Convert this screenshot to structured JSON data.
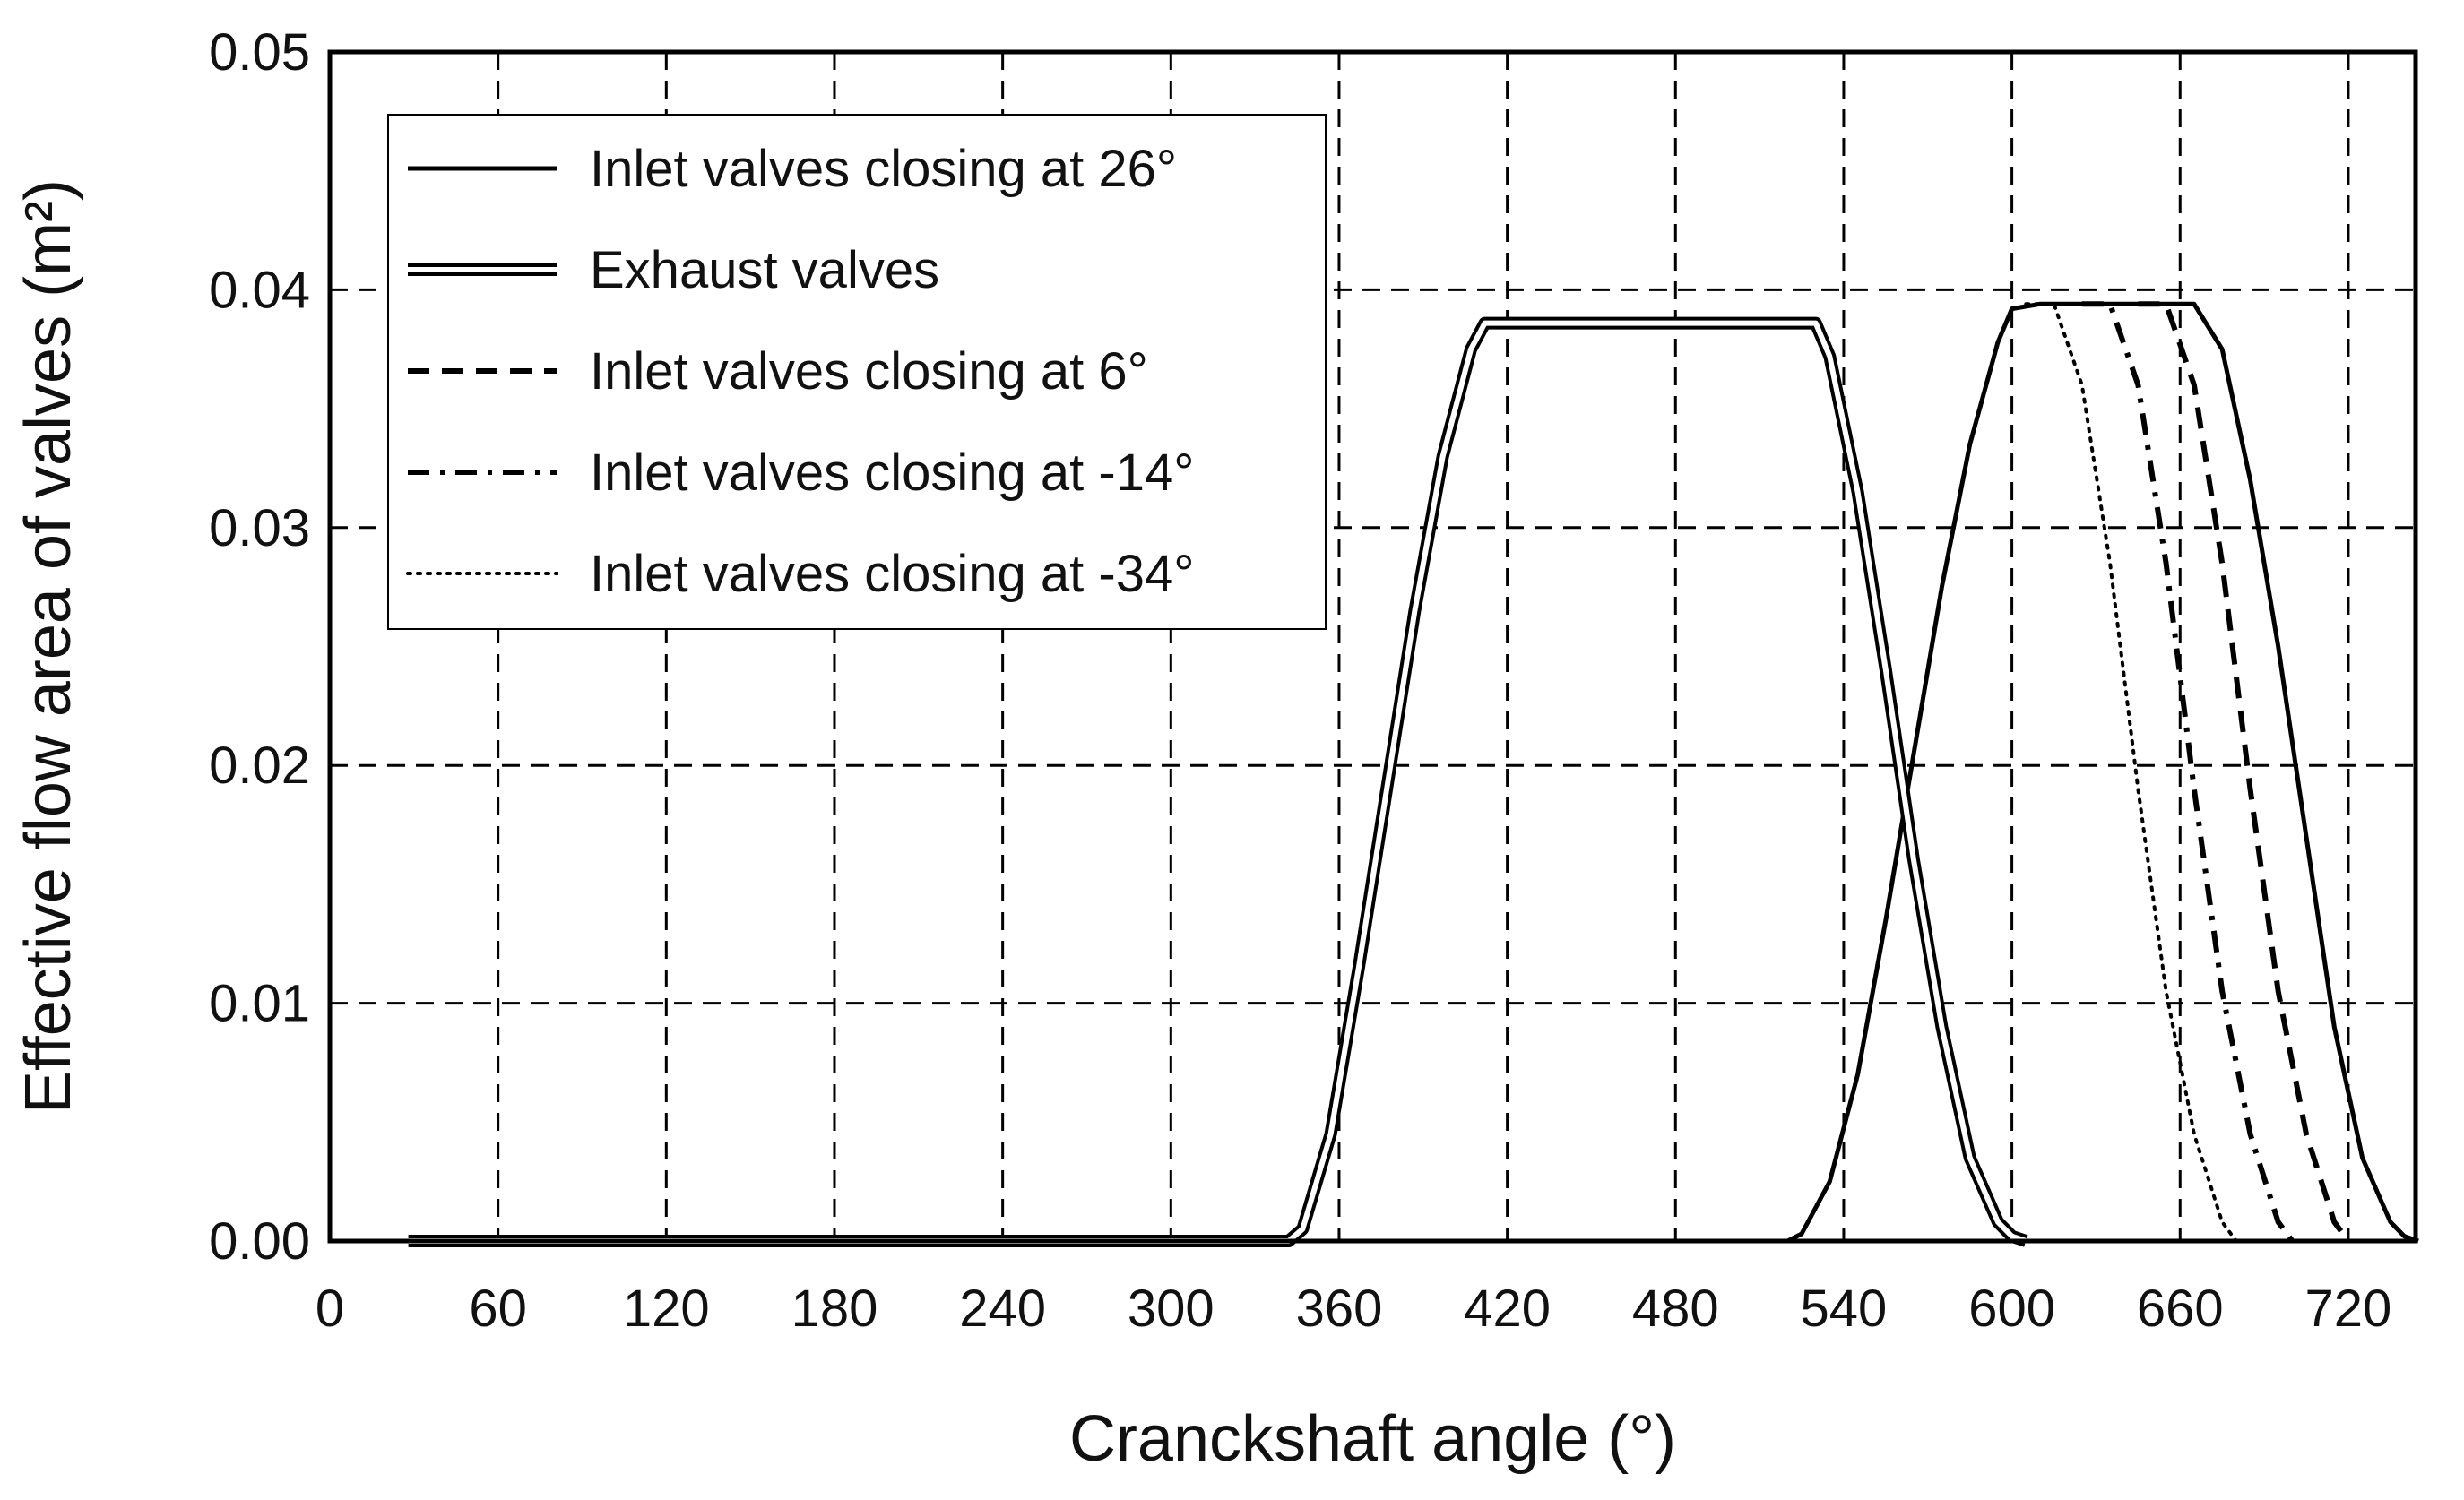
{
  "chart_data": {
    "type": "line",
    "xlabel": "Cranckshaft angle (°)",
    "ylabel": "Effective flow area of valves (m²)",
    "xlim": [
      0,
      744
    ],
    "ylim": [
      0,
      0.05
    ],
    "x_ticks": [
      0,
      60,
      120,
      180,
      240,
      300,
      360,
      420,
      480,
      540,
      600,
      660,
      720
    ],
    "y_ticks": [
      0.0,
      0.01,
      0.02,
      0.03,
      0.04,
      0.05
    ],
    "x_tick_labels": [
      "0",
      "60",
      "120",
      "180",
      "240",
      "300",
      "360",
      "420",
      "480",
      "540",
      "600",
      "660",
      "720"
    ],
    "y_tick_labels": [
      "0.00",
      "0.01",
      "0.02",
      "0.03",
      "0.04",
      "0.05"
    ],
    "grid": true,
    "legend_position": "top-left",
    "series": [
      {
        "name": "Inlet valves closing at 26°",
        "style": "solid",
        "x": [
          28,
          520,
          525,
          535,
          545,
          555,
          565,
          575,
          585,
          595,
          600,
          610,
          620,
          630,
          640,
          650,
          660,
          665,
          675,
          685,
          695,
          705,
          715,
          725,
          735,
          740,
          745
        ],
        "y": [
          0,
          0,
          0.0003,
          0.0025,
          0.007,
          0.0135,
          0.0205,
          0.0275,
          0.0335,
          0.0378,
          0.0392,
          0.0394,
          0.0394,
          0.0394,
          0.0394,
          0.0394,
          0.0394,
          0.0394,
          0.0375,
          0.032,
          0.025,
          0.017,
          0.009,
          0.0035,
          0.0008,
          0.0002,
          0
        ]
      },
      {
        "name": "Exhaust valves",
        "style": "double",
        "x": [
          28,
          342,
          347,
          357,
          367,
          377,
          387,
          397,
          407,
          412,
          420,
          480,
          530,
          535,
          545,
          555,
          565,
          575,
          585,
          595,
          600,
          605
        ],
        "y": [
          0,
          0,
          0.0005,
          0.0045,
          0.0115,
          0.019,
          0.0265,
          0.033,
          0.0375,
          0.0386,
          0.0386,
          0.0386,
          0.0386,
          0.0372,
          0.0315,
          0.024,
          0.016,
          0.009,
          0.0035,
          0.0008,
          0.0002,
          0
        ]
      },
      {
        "name": "Inlet valves closing at 6°",
        "style": "dashed",
        "x": [
          645,
          655,
          665,
          675,
          685,
          695,
          705,
          715,
          720
        ],
        "y": [
          0.0394,
          0.0394,
          0.036,
          0.0285,
          0.019,
          0.0105,
          0.0045,
          0.0008,
          0
        ]
      },
      {
        "name": "Inlet valves closing at -14°",
        "style": "dashdot",
        "x": [
          625,
          635,
          645,
          655,
          665,
          675,
          685,
          695,
          700
        ],
        "y": [
          0.0394,
          0.0394,
          0.036,
          0.0285,
          0.019,
          0.0105,
          0.0045,
          0.0008,
          0
        ]
      },
      {
        "name": "Inlet valves closing at -34°",
        "style": "dotted",
        "x": [
          605,
          615,
          625,
          635,
          645,
          655,
          665,
          675,
          680
        ],
        "y": [
          0.0394,
          0.0394,
          0.036,
          0.0285,
          0.019,
          0.0105,
          0.0045,
          0.0008,
          0
        ]
      }
    ]
  }
}
